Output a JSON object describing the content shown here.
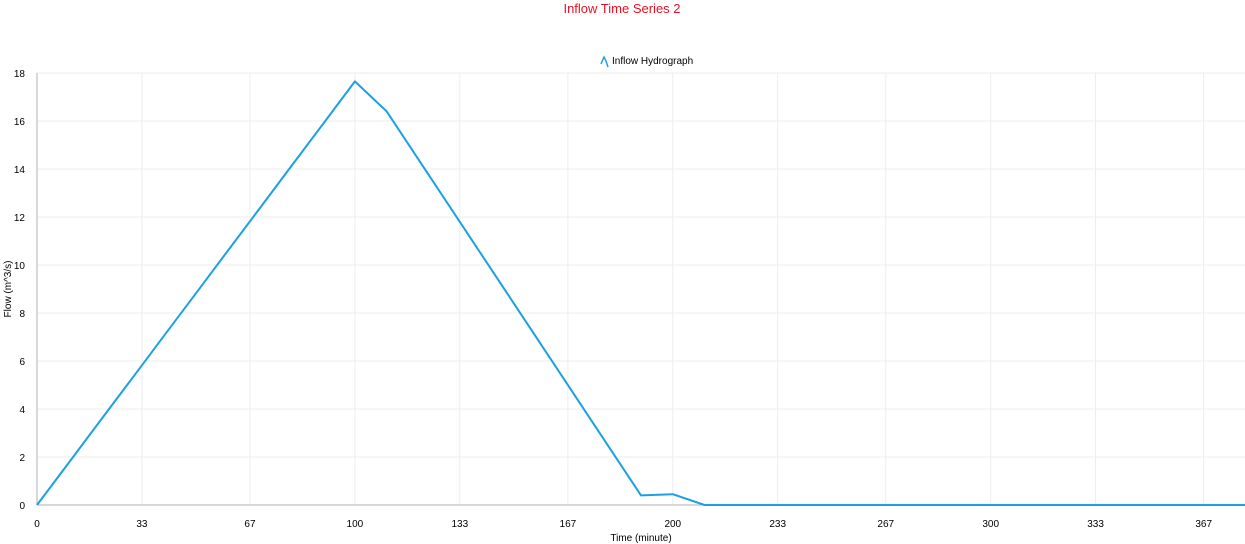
{
  "chart_data": {
    "type": "line",
    "title": "Inflow Time Series 2",
    "xlabel": "Time (minute)",
    "ylabel": "Flow (m^3/s)",
    "xlim": [
      0,
      380
    ],
    "ylim": [
      0,
      18
    ],
    "x_ticks": [
      0,
      33,
      67,
      100,
      133,
      167,
      200,
      233,
      267,
      300,
      333,
      367
    ],
    "x_tick_labels": [
      "0",
      "33",
      "67",
      "100",
      "133",
      "167",
      "200",
      "233",
      "267",
      "300",
      "333",
      "367"
    ],
    "y_ticks": [
      0,
      2,
      4,
      6,
      8,
      10,
      12,
      14,
      16,
      18
    ],
    "y_tick_labels": [
      "0",
      "2",
      "4",
      "6",
      "8",
      "10",
      "12",
      "14",
      "16",
      "18"
    ],
    "grid": true,
    "legend_position": "top-center",
    "series": [
      {
        "name": "Inflow Hydrograph",
        "color": "#1ba1e2",
        "x": [
          0,
          10,
          20,
          30,
          40,
          50,
          60,
          70,
          80,
          90,
          100,
          110,
          120,
          130,
          140,
          150,
          160,
          170,
          180,
          190,
          200,
          210,
          220,
          230,
          240,
          250,
          260,
          270,
          280,
          290,
          300,
          310,
          320,
          330,
          340,
          350,
          360,
          370,
          380
        ],
        "y": [
          0,
          1.76,
          3.53,
          5.29,
          7.06,
          8.82,
          10.59,
          12.35,
          14.12,
          15.88,
          17.65,
          16.4,
          14.4,
          12.4,
          10.4,
          8.4,
          6.4,
          4.4,
          2.4,
          0.4,
          0.45,
          0,
          0,
          0,
          0,
          0,
          0,
          0,
          0,
          0,
          0,
          0,
          0,
          0,
          0,
          0,
          0,
          0,
          0
        ]
      }
    ]
  }
}
